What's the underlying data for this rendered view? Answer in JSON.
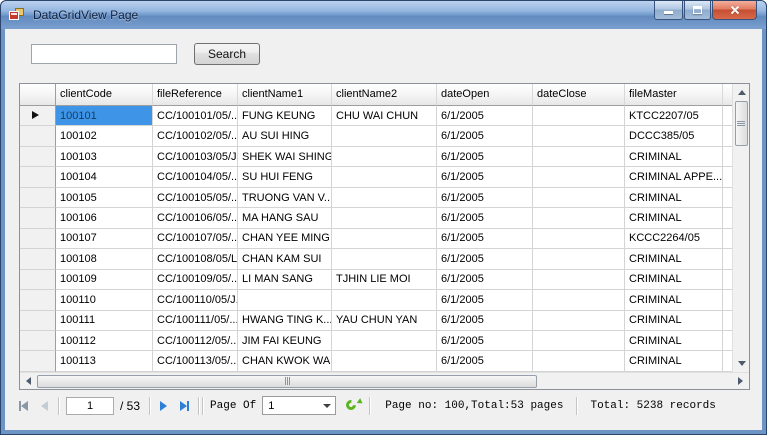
{
  "window": {
    "title": "DataGridView Page"
  },
  "icons": {
    "app": "form-window-icon",
    "minimize": "minimize-icon",
    "maximize": "maximize-icon",
    "close": "close-icon",
    "refresh": "refresh-arrow-icon",
    "row_pointer": "current-row-arrow-icon"
  },
  "search": {
    "input_value": "",
    "input_placeholder": "",
    "button_label": "Search"
  },
  "grid": {
    "columns": [
      "clientCode",
      "fileReference",
      "clientName1",
      "clientName2",
      "dateOpen",
      "dateClose",
      "fileMaster"
    ],
    "rows": [
      [
        "100101",
        "CC/100101/05/...",
        "FUNG KEUNG",
        "CHU WAI CHUN",
        "6/1/2005",
        "",
        "KTCC2207/05"
      ],
      [
        "100102",
        "CC/100102/05/...",
        "AU SUI HING",
        "",
        "6/1/2005",
        "",
        "DCCC385/05"
      ],
      [
        "100103",
        "CC/100103/05/J...",
        "SHEK WAI SHING",
        "",
        "6/1/2005",
        "",
        "CRIMINAL"
      ],
      [
        "100104",
        "CC/100104/05/...",
        "SU HUI FENG",
        "",
        "6/1/2005",
        "",
        "CRIMINAL APPE..."
      ],
      [
        "100105",
        "CC/100105/05/...",
        "TRUONG VAN V...",
        "",
        "6/1/2005",
        "",
        "CRIMINAL"
      ],
      [
        "100106",
        "CC/100106/05/...",
        "MA HANG SAU",
        "",
        "6/1/2005",
        "",
        "CRIMINAL"
      ],
      [
        "100107",
        "CC/100107/05/...",
        "CHAN YEE MING",
        "",
        "6/1/2005",
        "",
        "KCCC2264/05"
      ],
      [
        "100108",
        "CC/100108/05/L...",
        "CHAN KAM SUI",
        "",
        "6/1/2005",
        "",
        "CRIMINAL"
      ],
      [
        "100109",
        "CC/100109/05/...",
        "LI MAN SANG",
        "TJHIN LIE MOI",
        "6/1/2005",
        "",
        "CRIMINAL"
      ],
      [
        "100110",
        "CC/100110/05/J...",
        "",
        "",
        "6/1/2005",
        "",
        "CRIMINAL"
      ],
      [
        "100111",
        "CC/100111/05/...",
        "HWANG TING K...",
        "YAU CHUN YAN",
        "6/1/2005",
        "",
        "CRIMINAL"
      ],
      [
        "100112",
        "CC/100112/05/...",
        "JIM FAI KEUNG",
        "",
        "6/1/2005",
        "",
        "CRIMINAL"
      ],
      [
        "100113",
        "CC/100113/05/...",
        "CHAN KWOK WAI",
        "",
        "6/1/2005",
        "",
        "CRIMINAL"
      ]
    ],
    "selected": {
      "row": 0,
      "col": 0
    }
  },
  "pager": {
    "page_value": "1",
    "total_label": "/ 53",
    "page_of_label": "Page Of",
    "page_select_value": "1",
    "status_pages": "Page no: 100,Total:53 pages",
    "status_records": "Total: 5238 records"
  },
  "colors": {
    "selection_bg": "#3E95E8",
    "titlebar_blue": "#6E94C6",
    "close_red": "#C44F33",
    "refresh_green": "#5CB41F",
    "nav_enabled_blue": "#2E7FD8",
    "nav_disabled_gray": "#8A97A5"
  }
}
